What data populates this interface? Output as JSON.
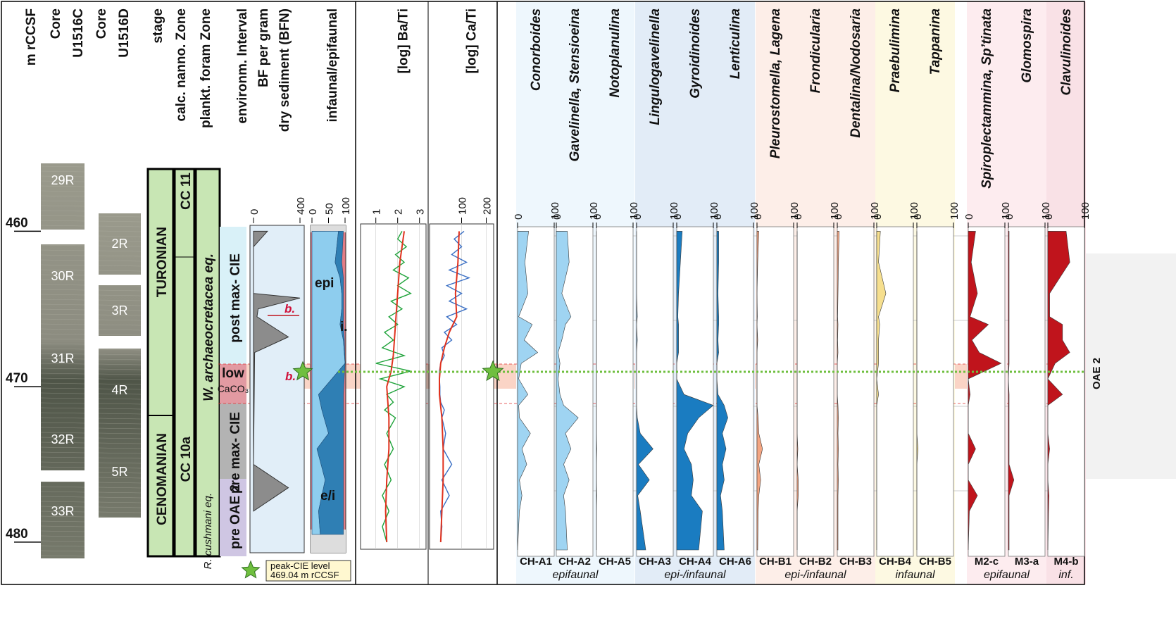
{
  "header": {
    "columns": [
      [
        "m rCCSF"
      ],
      [
        "Core",
        "U1516C"
      ],
      [
        "Core",
        "U1516D"
      ],
      [
        "stage"
      ],
      [
        "calc. nanno. Zone"
      ],
      [
        "plankt. foram Zone"
      ],
      [
        "environm. Interval"
      ],
      [
        "BF per gram",
        "dry sediment (BFN)"
      ],
      [
        "infaunal/epifaunal"
      ]
    ]
  },
  "depth": {
    "ylim": [
      455.5,
      481
    ],
    "yticks": [
      460,
      470,
      480
    ]
  },
  "cores": [
    {
      "sections": [
        "29R",
        "30R",
        "31R",
        "32R",
        "33R"
      ]
    },
    {
      "sections": [
        "2R",
        "3R",
        "4R",
        "5R"
      ]
    }
  ],
  "stages": [
    "TURONIAN",
    "CENOMANIAN"
  ],
  "nanno_zones": [
    "CC 11",
    "CC 10a"
  ],
  "foram_zones": [
    "W. archaeocretacea eq.",
    "R. cushmani eq."
  ],
  "intervals": [
    [
      "post max- CIE"
    ],
    [
      "low",
      "CaCO₃"
    ],
    [
      "pre max- CIE"
    ],
    [
      "pre OAE 2"
    ]
  ],
  "annotations": {
    "b_upper": "b.",
    "b_lower": "b.",
    "epi": "epi",
    "i": "i.",
    "ei": "e/i",
    "oae": "OAE 2"
  },
  "peak_cie": {
    "label": "peak-CIE level",
    "depth": 469.04,
    "depth_label": "469.04 m rCCSF"
  },
  "groups": [
    "epifaunal",
    "epi-/infaunal",
    "epi-/infaunal",
    "infaunal",
    "epifaunal",
    "inf."
  ],
  "samples": {
    "depths": [
      460,
      462,
      464,
      465.5,
      466,
      467,
      467.8,
      468.5,
      469.5,
      470.5,
      471.2,
      472,
      473,
      474,
      475,
      476,
      477,
      478,
      480.5
    ]
  },
  "chart_data": [
    {
      "type": "bfn",
      "xlim": [
        0,
        400
      ],
      "xticks": [
        0,
        400
      ],
      "color": "#8c8c8c",
      "depths": [
        460,
        461,
        464,
        464.3,
        465,
        465.5,
        466.8,
        467.8,
        475,
        476.5,
        478
      ],
      "values": [
        120,
        0,
        0,
        400,
        40,
        30,
        300,
        10,
        0,
        300,
        0
      ]
    },
    {
      "type": "stacked",
      "xlim": [
        0,
        100
      ],
      "xticks": [
        0,
        50,
        100
      ],
      "depths": [
        460,
        462,
        463,
        464,
        465,
        466,
        467,
        468.5,
        470.5,
        471.5,
        473,
        474,
        476,
        478,
        479.5
      ],
      "series": [
        {
          "color": "#8ecdee",
          "values": [
            80,
            70,
            85,
            90,
            90,
            85,
            95,
            100,
            20,
            30,
            50,
            15,
            40,
            20,
            25
          ]
        },
        {
          "color": "#2f7fb4",
          "values": [
            15,
            20,
            10,
            5,
            5,
            10,
            3,
            0,
            75,
            65,
            45,
            80,
            55,
            75,
            70
          ]
        }
      ]
    },
    {
      "type": "line",
      "title": "[log] Ba/Ti",
      "xlim": [
        0.3,
        3.3
      ],
      "xticks": [
        1,
        2,
        3
      ],
      "series": [
        {
          "color": "#1fa33a",
          "depths": [
            460,
            460.5,
            461,
            461.5,
            462,
            462.5,
            463,
            463.5,
            464,
            464.5,
            465,
            465.5,
            466,
            466.5,
            467,
            467.5,
            468,
            468.5,
            469,
            469.5,
            470,
            470.5,
            471,
            471.5,
            472,
            473,
            474,
            475,
            476,
            477,
            478,
            479,
            480
          ],
          "values": [
            2.2,
            2.0,
            2.4,
            1.9,
            2.3,
            1.8,
            2.5,
            2.0,
            2.6,
            1.7,
            2.2,
            1.6,
            2.0,
            1.4,
            1.8,
            1.3,
            2.3,
            1.0,
            2.6,
            1.2,
            2.3,
            1.5,
            1.8,
            1.4,
            1.9,
            1.5,
            1.8,
            1.4,
            1.7,
            1.3,
            1.6,
            1.3,
            1.5
          ]
        },
        {
          "color": "#e0321e",
          "depths": [
            460,
            462,
            464,
            466,
            468,
            469,
            470,
            472,
            474,
            476,
            478,
            480
          ],
          "values": [
            2.3,
            2.1,
            2.0,
            1.9,
            1.8,
            1.7,
            1.5,
            1.6,
            1.6,
            1.5,
            1.45,
            1.5
          ]
        }
      ]
    },
    {
      "type": "line",
      "title": "[log] Ca/Ti",
      "xlim": [
        -30,
        230
      ],
      "xticks": [
        100,
        200
      ],
      "series": [
        {
          "color": "#3a6fc4",
          "depths": [
            460,
            460.5,
            461,
            461.5,
            462,
            462.5,
            463,
            463.5,
            464,
            464.5,
            465,
            465.5,
            466,
            466.5,
            467,
            467.5,
            468,
            468.5,
            469,
            469.5,
            470,
            470.5,
            471,
            471.5,
            472,
            473,
            474,
            475,
            476,
            477,
            478,
            479,
            480
          ],
          "values": [
            110,
            70,
            100,
            60,
            120,
            50,
            130,
            40,
            100,
            50,
            120,
            40,
            80,
            30,
            60,
            20,
            30,
            15,
            10,
            10,
            12,
            12,
            15,
            30,
            20,
            35,
            25,
            60,
            20,
            50,
            15,
            20,
            15
          ]
        },
        {
          "color": "#e0321e",
          "depths": [
            460,
            462,
            464,
            465.5,
            466.5,
            467.5,
            468.5,
            469.5,
            470.5,
            472,
            474,
            476,
            478,
            480
          ],
          "values": [
            90,
            85,
            75,
            80,
            50,
            30,
            15,
            10,
            10,
            20,
            25,
            25,
            20,
            15
          ]
        }
      ]
    },
    {
      "type": "area",
      "title": "Conorboides",
      "label": "CH-A1",
      "xlim": [
        0,
        100
      ],
      "xticks": [
        0,
        100
      ],
      "color": "#9fd4f2",
      "values": [
        30,
        20,
        28,
        3,
        40,
        18,
        55,
        10,
        3,
        28,
        3,
        5,
        35,
        12,
        25,
        5,
        12,
        5,
        0
      ]
    },
    {
      "type": "area",
      "title": "Gavelinella, Stensioeina",
      "label": "CH-A2",
      "xlim": [
        0,
        100
      ],
      "xticks": [
        0,
        100
      ],
      "color": "#9fd4f2",
      "values": [
        30,
        35,
        15,
        40,
        25,
        15,
        5,
        10,
        5,
        10,
        20,
        60,
        25,
        40,
        20,
        35,
        20,
        25,
        30
      ]
    },
    {
      "type": "area",
      "title": "Notoplanulina",
      "label": "CH-A5",
      "xlim": [
        0,
        100
      ],
      "xticks": [
        0,
        100
      ],
      "color": "#9fd4f2",
      "values": [
        0,
        0,
        0,
        0,
        0,
        0,
        0,
        0,
        0,
        0,
        0,
        0,
        0,
        1,
        0,
        0,
        1,
        0,
        0
      ]
    },
    {
      "type": "area",
      "title": "Lingulogavelinella",
      "label": "CH-A3",
      "xlim": [
        0,
        100
      ],
      "xticks": [
        0,
        100
      ],
      "color": "#1a7cc1",
      "values": [
        0,
        0,
        0,
        2,
        0,
        2,
        0,
        0,
        0,
        0,
        0,
        2,
        10,
        45,
        5,
        35,
        3,
        10,
        25
      ]
    },
    {
      "type": "area",
      "title": "Gyroidinoides",
      "label": "CH-A4",
      "xlim": [
        0,
        100
      ],
      "xticks": [
        0,
        100
      ],
      "color": "#1a7cc1",
      "values": [
        15,
        10,
        5,
        3,
        5,
        5,
        5,
        0,
        0,
        20,
        100,
        60,
        30,
        20,
        40,
        45,
        40,
        70,
        60
      ]
    },
    {
      "type": "area",
      "title": "Lenticulina",
      "label": "CH-A6",
      "xlim": [
        0,
        100
      ],
      "xticks": [
        0,
        100
      ],
      "color": "#1a7cc1",
      "values": [
        5,
        5,
        3,
        5,
        5,
        3,
        5,
        0,
        0,
        3,
        20,
        30,
        15,
        25,
        15,
        20,
        10,
        15,
        20
      ]
    },
    {
      "type": "area",
      "title": "Pleurostomella, Lagena",
      "label": "CH-B1",
      "xlim": [
        0,
        100
      ],
      "xticks": [
        0,
        100
      ],
      "color": "#f4a582",
      "values": [
        5,
        2,
        0,
        1,
        0,
        2,
        0,
        0,
        0,
        0,
        0,
        3,
        5,
        15,
        5,
        10,
        5,
        3,
        2
      ]
    },
    {
      "type": "area",
      "title": "Frondicularia",
      "label": "CH-B2",
      "xlim": [
        0,
        100
      ],
      "xticks": [
        0,
        100
      ],
      "color": "#f4a582",
      "values": [
        0,
        0,
        0,
        0,
        0,
        0,
        0,
        0,
        0,
        0,
        0,
        0,
        0,
        2,
        0,
        3,
        3,
        0,
        0
      ]
    },
    {
      "type": "area",
      "title": "Dentalina/Nodosaria",
      "label": "CH-B3",
      "xlim": [
        0,
        100
      ],
      "xticks": [
        0,
        100
      ],
      "color": "#f4a582",
      "values": [
        5,
        3,
        2,
        1,
        2,
        1,
        2,
        0,
        0,
        0,
        2,
        3,
        2,
        3,
        2,
        3,
        2,
        2,
        2
      ]
    },
    {
      "type": "area",
      "title": "Praebulimina",
      "label": "CH-B4",
      "xlim": [
        0,
        100
      ],
      "xticks": [
        0,
        100
      ],
      "color": "#f6df8e",
      "values": [
        10,
        5,
        25,
        5,
        8,
        5,
        5,
        5,
        0,
        5,
        0,
        0,
        0,
        0,
        0,
        0,
        0,
        0,
        0
      ]
    },
    {
      "type": "area",
      "title": "Tappanina",
      "label": "CH-B5",
      "xlim": [
        0,
        100
      ],
      "xticks": [
        0,
        100
      ],
      "color": "#f6df8e",
      "values": [
        0,
        0,
        0,
        0,
        0,
        0,
        0,
        0,
        0,
        0,
        0,
        0,
        0,
        3,
        0,
        0,
        0,
        0,
        0
      ]
    },
    {
      "type": "area",
      "title": "Spiroplectammina, Sp’tinata",
      "label": "M2-c",
      "xlim": [
        0,
        100
      ],
      "xticks": [
        0,
        100
      ],
      "color": "#c0141c",
      "values": [
        20,
        8,
        25,
        5,
        55,
        10,
        30,
        90,
        0,
        5,
        0,
        0,
        0,
        20,
        0,
        0,
        25,
        3,
        0
      ]
    },
    {
      "type": "area",
      "title": "Glomospira",
      "label": "M3-a",
      "xlim": [
        0,
        100
      ],
      "xticks": [
        0,
        100
      ],
      "color": "#c0141c",
      "values": [
        2,
        2,
        2,
        2,
        2,
        2,
        2,
        2,
        0,
        2,
        2,
        2,
        2,
        2,
        2,
        15,
        2,
        2,
        2
      ]
    },
    {
      "type": "area",
      "title": "Clavulinoides",
      "label": "M4-b",
      "xlim": [
        0,
        100
      ],
      "xticks": [
        0,
        100
      ],
      "color": "#c0141c",
      "values": [
        50,
        60,
        5,
        5,
        40,
        40,
        60,
        20,
        0,
        40,
        0,
        0,
        0,
        5,
        0,
        0,
        3,
        2,
        0
      ]
    }
  ]
}
